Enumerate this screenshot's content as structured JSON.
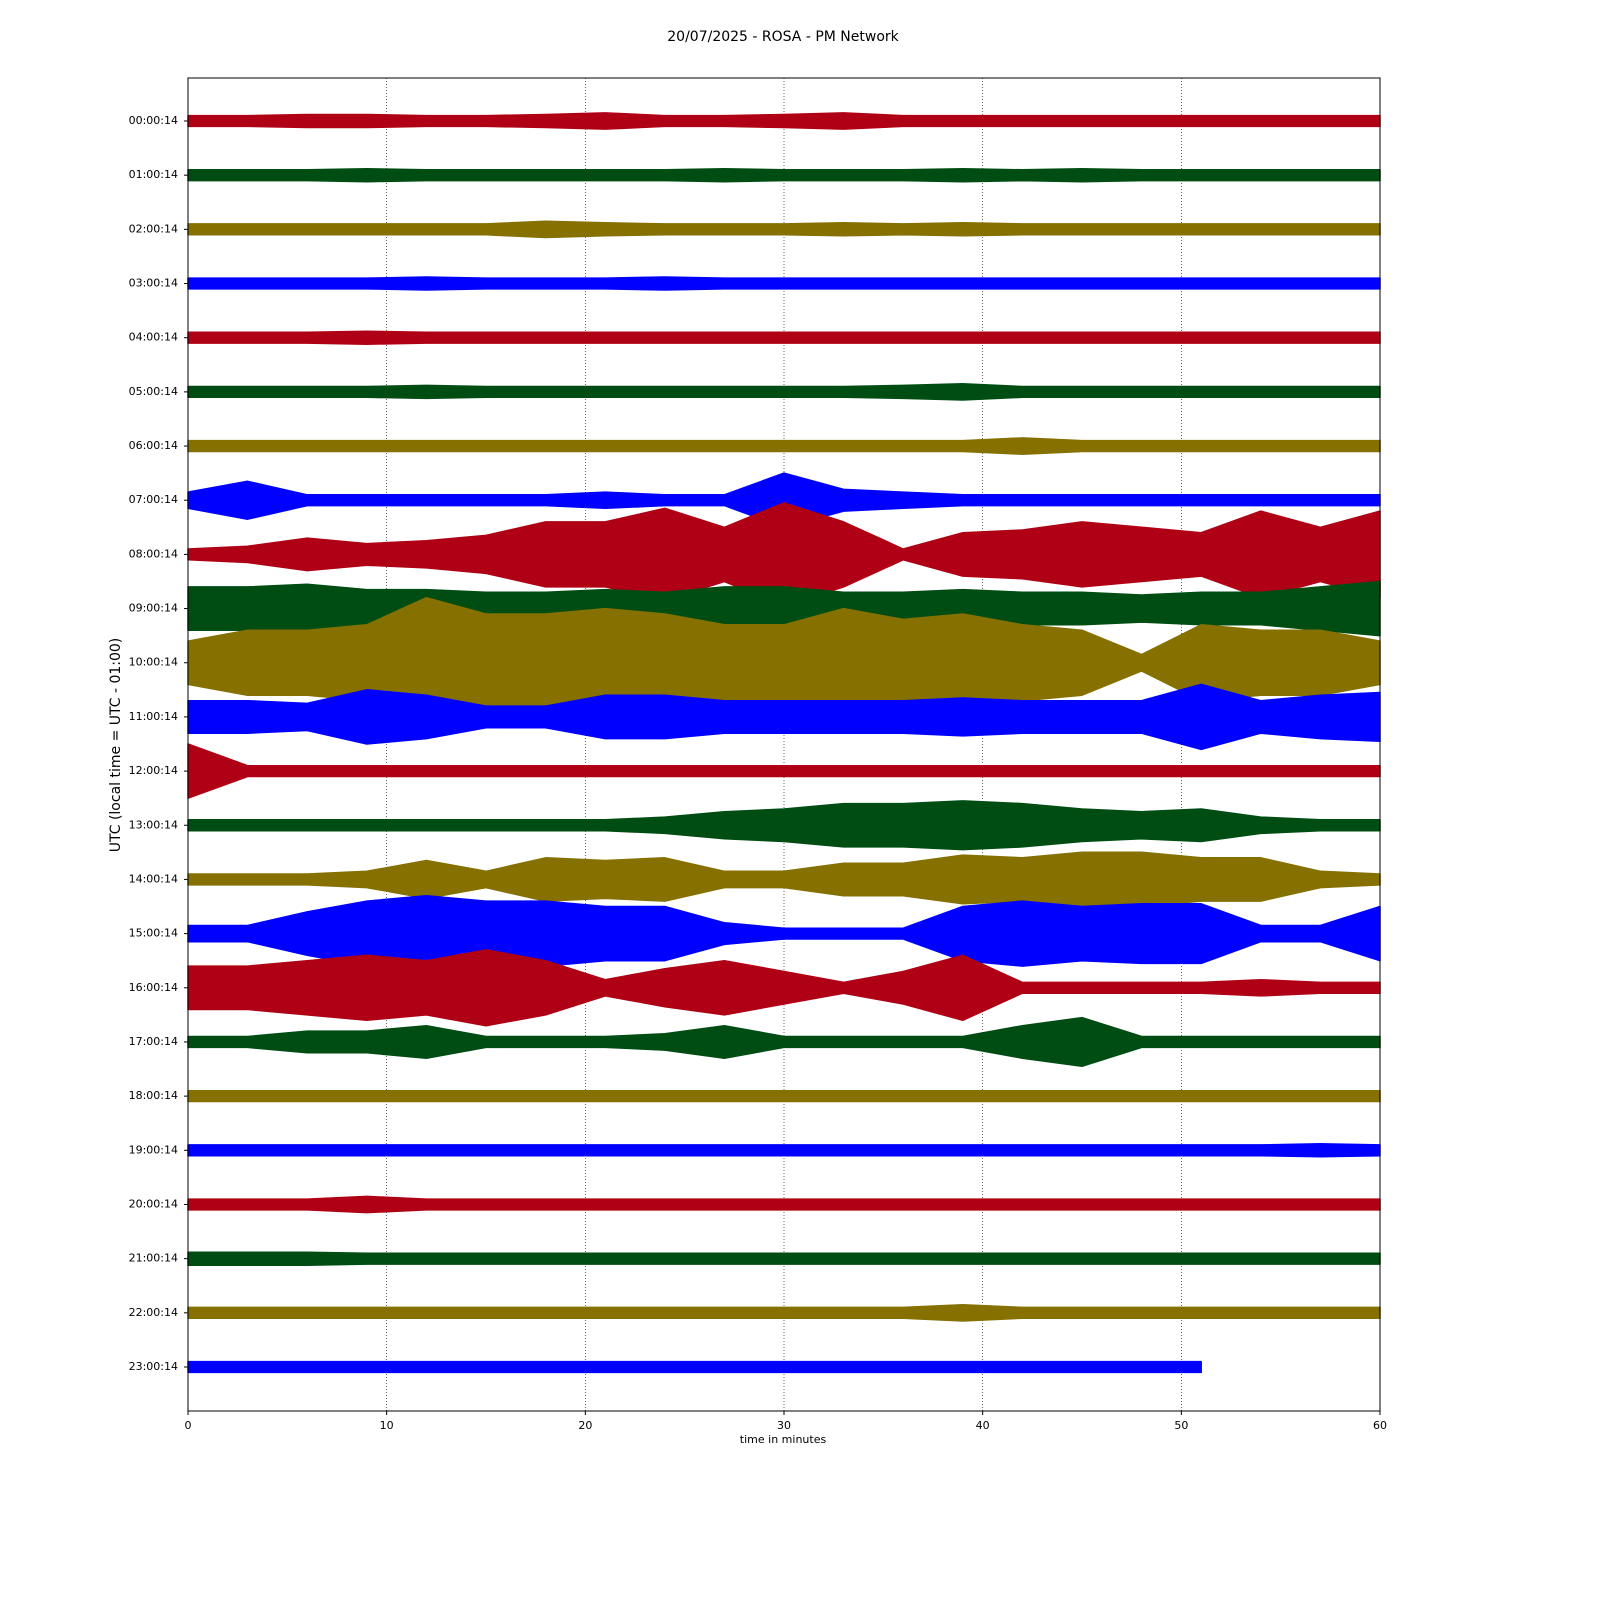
{
  "chart_data": {
    "type": "helicorder",
    "title": "20/07/2025 - ROSA - PM Network",
    "xlabel": "time in minutes",
    "ylabel": "UTC (local time = UTC - 01:00)",
    "xlim": [
      0,
      60
    ],
    "xticks": [
      0,
      10,
      20,
      30,
      40,
      50,
      60
    ],
    "grid": true,
    "x": [
      0,
      3,
      6,
      9,
      12,
      15,
      18,
      21,
      24,
      27,
      30,
      33,
      36,
      39,
      42,
      45,
      48,
      51,
      54,
      57,
      60
    ],
    "series": [
      {
        "name": "00:00:14",
        "color": "#b00015",
        "values": [
          0.1,
          0.1,
          0.12,
          0.12,
          0.1,
          0.1,
          0.12,
          0.15,
          0.1,
          0.1,
          0.12,
          0.15,
          0.1,
          0.1,
          0.1,
          0.1,
          0.1,
          0.1,
          0.1,
          0.1,
          0.1
        ]
      },
      {
        "name": "01:00:14",
        "color": "#004d13",
        "values": [
          0.1,
          0.1,
          0.1,
          0.12,
          0.1,
          0.1,
          0.1,
          0.1,
          0.1,
          0.12,
          0.1,
          0.1,
          0.1,
          0.12,
          0.1,
          0.12,
          0.1,
          0.1,
          0.1,
          0.1,
          0.1
        ]
      },
      {
        "name": "02:00:14",
        "color": "#857000",
        "values": [
          0.1,
          0.1,
          0.1,
          0.1,
          0.1,
          0.1,
          0.15,
          0.12,
          0.1,
          0.1,
          0.1,
          0.12,
          0.1,
          0.12,
          0.1,
          0.1,
          0.1,
          0.1,
          0.1,
          0.1,
          0.1
        ]
      },
      {
        "name": "03:00:14",
        "color": "#0000ff",
        "values": [
          0.1,
          0.1,
          0.1,
          0.1,
          0.12,
          0.1,
          0.1,
          0.1,
          0.12,
          0.1,
          0.1,
          0.1,
          0.1,
          0.1,
          0.1,
          0.1,
          0.1,
          0.1,
          0.1,
          0.1,
          0.1
        ]
      },
      {
        "name": "04:00:14",
        "color": "#b00015",
        "values": [
          0.1,
          0.1,
          0.1,
          0.12,
          0.1,
          0.1,
          0.1,
          0.1,
          0.1,
          0.1,
          0.1,
          0.1,
          0.1,
          0.1,
          0.1,
          0.1,
          0.1,
          0.1,
          0.1,
          0.1,
          0.1
        ]
      },
      {
        "name": "05:00:14",
        "color": "#004d13",
        "values": [
          0.1,
          0.1,
          0.1,
          0.1,
          0.12,
          0.1,
          0.1,
          0.1,
          0.1,
          0.1,
          0.1,
          0.1,
          0.12,
          0.15,
          0.1,
          0.1,
          0.1,
          0.1,
          0.1,
          0.1,
          0.1
        ]
      },
      {
        "name": "06:00:14",
        "color": "#857000",
        "values": [
          0.1,
          0.1,
          0.1,
          0.1,
          0.1,
          0.1,
          0.1,
          0.1,
          0.1,
          0.1,
          0.1,
          0.1,
          0.1,
          0.1,
          0.15,
          0.1,
          0.1,
          0.1,
          0.1,
          0.1,
          0.1
        ]
      },
      {
        "name": "07:00:14",
        "color": "#0000ff",
        "values": [
          0.15,
          0.35,
          0.1,
          0.1,
          0.1,
          0.1,
          0.1,
          0.15,
          0.1,
          0.1,
          0.5,
          0.2,
          0.15,
          0.1,
          0.1,
          0.1,
          0.1,
          0.1,
          0.1,
          0.1,
          0.1
        ]
      },
      {
        "name": "08:00:14",
        "color": "#b00015",
        "values": [
          0.1,
          0.15,
          0.3,
          0.2,
          0.25,
          0.35,
          0.6,
          0.6,
          0.85,
          0.5,
          0.95,
          0.6,
          0.1,
          0.4,
          0.45,
          0.6,
          0.5,
          0.4,
          0.8,
          0.5,
          0.8
        ]
      },
      {
        "name": "09:00:14",
        "color": "#004d13",
        "values": [
          0.4,
          0.4,
          0.45,
          0.35,
          0.35,
          0.3,
          0.3,
          0.35,
          0.3,
          0.4,
          0.4,
          0.3,
          0.3,
          0.35,
          0.3,
          0.3,
          0.25,
          0.3,
          0.3,
          0.4,
          0.5
        ]
      },
      {
        "name": "10:00:14",
        "color": "#857000",
        "values": [
          0.4,
          0.6,
          0.6,
          0.7,
          1.2,
          0.9,
          0.9,
          1.0,
          0.9,
          0.7,
          0.7,
          1.0,
          0.8,
          0.9,
          0.7,
          0.6,
          0.15,
          0.7,
          0.6,
          0.6,
          0.4
        ]
      },
      {
        "name": "11:00:14",
        "color": "#0000ff",
        "values": [
          0.3,
          0.3,
          0.25,
          0.5,
          0.4,
          0.2,
          0.2,
          0.4,
          0.4,
          0.3,
          0.3,
          0.3,
          0.3,
          0.35,
          0.3,
          0.3,
          0.3,
          0.6,
          0.3,
          0.4,
          0.45
        ]
      },
      {
        "name": "12:00:14",
        "color": "#b00015",
        "values": [
          0.5,
          0.1,
          0.1,
          0.1,
          0.1,
          0.1,
          0.1,
          0.1,
          0.1,
          0.1,
          0.1,
          0.1,
          0.1,
          0.1,
          0.1,
          0.1,
          0.1,
          0.1,
          0.1,
          0.1,
          0.1
        ]
      },
      {
        "name": "13:00:14",
        "color": "#004d13",
        "values": [
          0.1,
          0.1,
          0.1,
          0.1,
          0.1,
          0.1,
          0.1,
          0.1,
          0.15,
          0.25,
          0.3,
          0.4,
          0.4,
          0.45,
          0.4,
          0.3,
          0.25,
          0.3,
          0.15,
          0.1,
          0.1
        ]
      },
      {
        "name": "14:00:14",
        "color": "#857000",
        "values": [
          0.1,
          0.1,
          0.1,
          0.15,
          0.35,
          0.15,
          0.4,
          0.35,
          0.4,
          0.15,
          0.15,
          0.3,
          0.3,
          0.45,
          0.4,
          0.5,
          0.5,
          0.4,
          0.4,
          0.15,
          0.1
        ]
      },
      {
        "name": "15:00:14",
        "color": "#0000ff",
        "values": [
          0.15,
          0.15,
          0.4,
          0.6,
          0.7,
          0.6,
          0.6,
          0.5,
          0.5,
          0.2,
          0.1,
          0.1,
          0.1,
          0.5,
          0.6,
          0.5,
          0.55,
          0.55,
          0.15,
          0.15,
          0.5
        ]
      },
      {
        "name": "16:00:14",
        "color": "#b00015",
        "values": [
          0.4,
          0.4,
          0.5,
          0.6,
          0.5,
          0.7,
          0.5,
          0.15,
          0.35,
          0.5,
          0.3,
          0.1,
          0.3,
          0.6,
          0.1,
          0.1,
          0.1,
          0.1,
          0.15,
          0.1,
          0.1
        ]
      },
      {
        "name": "17:00:14",
        "color": "#004d13",
        "values": [
          0.1,
          0.1,
          0.2,
          0.2,
          0.3,
          0.1,
          0.1,
          0.1,
          0.15,
          0.3,
          0.1,
          0.1,
          0.1,
          0.1,
          0.3,
          0.45,
          0.1,
          0.1,
          0.1,
          0.1,
          0.1
        ]
      },
      {
        "name": "18:00:14",
        "color": "#857000",
        "values": [
          0.1,
          0.1,
          0.1,
          0.1,
          0.1,
          0.1,
          0.1,
          0.1,
          0.1,
          0.1,
          0.1,
          0.1,
          0.1,
          0.1,
          0.1,
          0.1,
          0.1,
          0.1,
          0.1,
          0.1,
          0.1
        ]
      },
      {
        "name": "19:00:14",
        "color": "#0000ff",
        "values": [
          0.1,
          0.1,
          0.1,
          0.1,
          0.1,
          0.1,
          0.1,
          0.1,
          0.1,
          0.1,
          0.1,
          0.1,
          0.1,
          0.1,
          0.1,
          0.1,
          0.1,
          0.1,
          0.1,
          0.12,
          0.1
        ]
      },
      {
        "name": "20:00:14",
        "color": "#b00015",
        "values": [
          0.1,
          0.1,
          0.1,
          0.15,
          0.1,
          0.1,
          0.1,
          0.1,
          0.1,
          0.1,
          0.1,
          0.1,
          0.1,
          0.1,
          0.1,
          0.1,
          0.1,
          0.1,
          0.1,
          0.1,
          0.1
        ]
      },
      {
        "name": "21:00:14",
        "color": "#004d13",
        "values": [
          0.12,
          0.12,
          0.12,
          0.1,
          0.1,
          0.1,
          0.1,
          0.1,
          0.1,
          0.1,
          0.1,
          0.1,
          0.1,
          0.1,
          0.1,
          0.1,
          0.1,
          0.1,
          0.1,
          0.1,
          0.1
        ]
      },
      {
        "name": "22:00:14",
        "color": "#857000",
        "values": [
          0.1,
          0.1,
          0.1,
          0.1,
          0.1,
          0.1,
          0.1,
          0.1,
          0.1,
          0.1,
          0.1,
          0.1,
          0.1,
          0.15,
          0.1,
          0.1,
          0.1,
          0.1,
          0.1,
          0.1,
          0.1
        ]
      },
      {
        "name": "23:00:14",
        "color": "#0000ff",
        "values": [
          0.1,
          0.1,
          0.1,
          0.1,
          0.1,
          0.1,
          0.1,
          0.1,
          0.1,
          0.1,
          0.1,
          0.1,
          0.1,
          0.1,
          0.1,
          0.1,
          0.1,
          0.1,
          null,
          null,
          null
        ]
      }
    ]
  }
}
